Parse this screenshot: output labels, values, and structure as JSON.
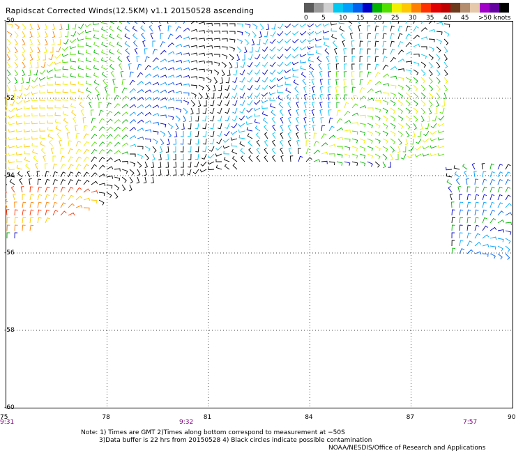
{
  "title": "Rapidscat Corrected Winds(12.5KM) v1.1 20150528 ascending",
  "legend": {
    "colors": [
      "#5a5a5a",
      "#9a9a9a",
      "#d0d0d0",
      "#00c8f0",
      "#00a0ff",
      "#0060f0",
      "#0000c8",
      "#00b400",
      "#50e000",
      "#f0f000",
      "#ffc800",
      "#ff8000",
      "#ff3000",
      "#e00000",
      "#c00000",
      "#6e3a1e",
      "#b48c6e",
      "#e6c8aa",
      "#a000c8",
      "#6400a0",
      "#000000"
    ],
    "labels": [
      "0",
      "5",
      "10",
      "15",
      "20",
      "25",
      "30",
      "35",
      "40",
      "45",
      ">50 knots"
    ]
  },
  "axes": {
    "lon_ticks": [
      "75",
      "78",
      "81",
      "84",
      "87",
      "90"
    ],
    "lat_ticks": [
      "-50",
      "-52",
      "-54",
      "-56",
      "-58",
      "-60"
    ]
  },
  "times": [
    "9:31",
    "9:32",
    "7:57"
  ],
  "notes": {
    "line1": "Note: 1) Times are GMT 2)Times along bottom correspond to measurement at −50S",
    "line2": "3)Data buffer is 22 hrs from 20150528 4) Black circles indicate possible contamination"
  },
  "credit": "NOAA/NESDIS/Office of Research and Applications"
}
